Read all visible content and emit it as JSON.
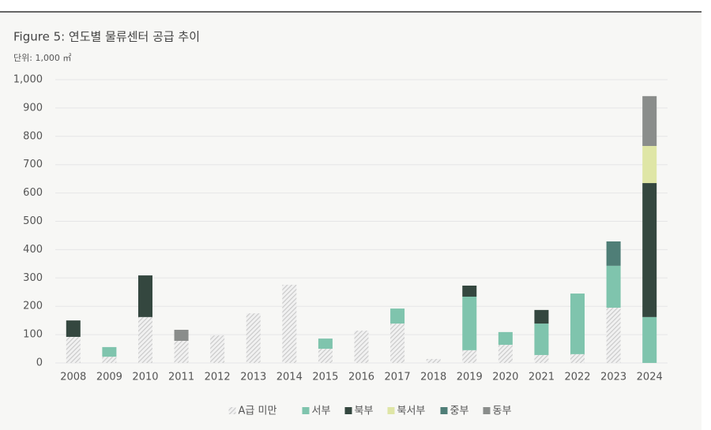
{
  "chart_data": {
    "type": "stacked_bar",
    "title": "Figure 5:  연도별 물류센터 공급 추이",
    "subtitle": "단위: 1,000 ㎡",
    "categories": [
      "2008",
      "2009",
      "2010",
      "2011",
      "2012",
      "2013",
      "2014",
      "2015",
      "2016",
      "2017",
      "2018",
      "2019",
      "2020",
      "2021",
      "2022",
      "2023",
      "2024"
    ],
    "series": [
      {
        "name": "A급 미만",
        "color": "#c8c8c8",
        "hatch": true,
        "values": [
          92,
          22,
          162,
          78,
          97,
          175,
          276,
          50,
          114,
          139,
          14,
          45,
          64,
          28,
          31,
          195,
          null
        ]
      },
      {
        "name": "서부",
        "color": "#7fc4ad",
        "values": [
          null,
          34,
          null,
          null,
          null,
          null,
          null,
          36,
          null,
          53,
          null,
          189,
          45,
          111,
          214,
          148,
          162
        ]
      },
      {
        "name": "북부",
        "color": "#34473f",
        "values": [
          58,
          null,
          147,
          null,
          null,
          null,
          null,
          null,
          null,
          null,
          null,
          39,
          null,
          48,
          null,
          null,
          473
        ]
      },
      {
        "name": "북서부",
        "color": "#dfe6a6",
        "values": [
          null,
          null,
          null,
          null,
          null,
          null,
          null,
          null,
          null,
          null,
          null,
          null,
          null,
          null,
          null,
          null,
          131
        ]
      },
      {
        "name": "중부",
        "color": "#4f7e77",
        "values": [
          null,
          null,
          null,
          null,
          null,
          null,
          null,
          null,
          null,
          null,
          null,
          null,
          null,
          null,
          null,
          86,
          null
        ]
      },
      {
        "name": "동부",
        "color": "#8a8d8b",
        "values": [
          null,
          null,
          null,
          39,
          null,
          null,
          null,
          null,
          null,
          null,
          null,
          null,
          null,
          null,
          null,
          null,
          176
        ]
      }
    ],
    "ylim": [
      0,
      1000
    ],
    "yticks": [
      0,
      100,
      200,
      300,
      400,
      500,
      600,
      700,
      800,
      900,
      {
        "value": 1000,
        "label": "1,000"
      }
    ],
    "grid": true,
    "legend": "bottom"
  }
}
